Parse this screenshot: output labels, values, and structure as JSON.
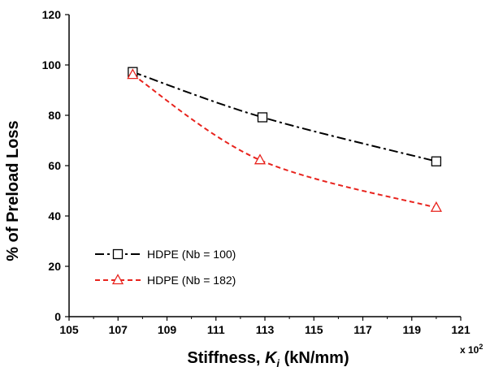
{
  "chart_data": {
    "type": "line",
    "xlabel": "Stiffness, ",
    "xlabel_var": "K",
    "xlabel_sub": "i",
    "xlabel_unit": " (kN/mm)",
    "x_multiplier": "x 10",
    "x_multiplier_exp": "2",
    "ylabel": "% of Preload Loss",
    "xlim": [
      105,
      121
    ],
    "ylim": [
      0,
      120
    ],
    "xticks": [
      105,
      107,
      109,
      111,
      113,
      115,
      117,
      119,
      121
    ],
    "yticks": [
      0,
      20,
      40,
      60,
      80,
      100,
      120
    ],
    "grid": false,
    "legend_position": "bottom-left",
    "series": [
      {
        "name": "HDPE (Nb = 100)",
        "x": [
          107.6,
          112.9,
          120.0
        ],
        "y": [
          97.2,
          79.2,
          61.7
        ],
        "color": "#000000",
        "marker": "square",
        "line_style": "dash-dot"
      },
      {
        "name": "HDPE (Nb = 182)",
        "x": [
          107.6,
          112.8,
          120.0
        ],
        "y": [
          96.1,
          62.2,
          43.3
        ],
        "color": "#e8231d",
        "marker": "triangle",
        "line_style": "dashed"
      }
    ]
  }
}
